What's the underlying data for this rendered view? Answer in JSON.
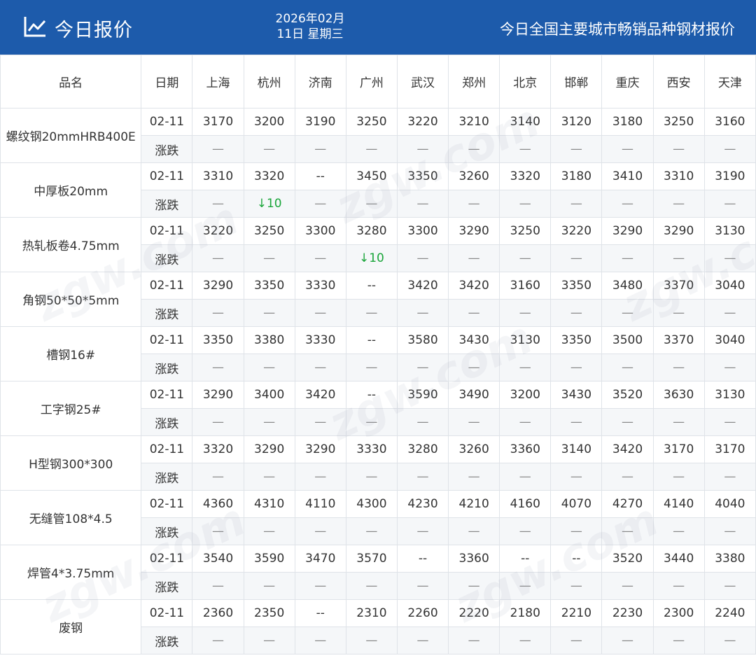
{
  "header": {
    "title": "今日报价",
    "date_line1": "2026年02月",
    "date_line2": "11日 星期三",
    "subtitle": "今日全国主要城市畅销品种钢材报价",
    "logo_icon": "line-chart-icon"
  },
  "colors": {
    "header_bg": "#1d5bab",
    "down": "#1aa53a"
  },
  "watermark": "zgw.com",
  "table": {
    "col_name": "品名",
    "col_date": "日期",
    "cities": [
      "上海",
      "杭州",
      "济南",
      "广州",
      "武汉",
      "郑州",
      "北京",
      "邯郸",
      "重庆",
      "西安",
      "天津"
    ],
    "rows": [
      {
        "name": "螺纹钢20mmHRB400E",
        "date": "02-11",
        "change_label": "涨跌",
        "prices": [
          "3170",
          "3200",
          "3190",
          "3250",
          "3220",
          "3210",
          "3140",
          "3120",
          "3180",
          "3250",
          "3160"
        ],
        "changes": [
          "—",
          "—",
          "—",
          "—",
          "—",
          "—",
          "—",
          "—",
          "—",
          "—",
          "—"
        ]
      },
      {
        "name": "中厚板20mm",
        "date": "02-11",
        "change_label": "涨跌",
        "prices": [
          "3310",
          "3320",
          "--",
          "3450",
          "3350",
          "3260",
          "3320",
          "3180",
          "3410",
          "3310",
          "3190"
        ],
        "changes": [
          "—",
          "↓10",
          "—",
          "—",
          "—",
          "—",
          "—",
          "—",
          "—",
          "—",
          "—"
        ]
      },
      {
        "name": "热轧板卷4.75mm",
        "date": "02-11",
        "change_label": "涨跌",
        "prices": [
          "3220",
          "3250",
          "3300",
          "3280",
          "3300",
          "3290",
          "3250",
          "3220",
          "3290",
          "3290",
          "3130"
        ],
        "changes": [
          "—",
          "—",
          "—",
          "↓10",
          "—",
          "—",
          "—",
          "—",
          "—",
          "—",
          "—"
        ]
      },
      {
        "name": "角钢50*50*5mm",
        "date": "02-11",
        "change_label": "涨跌",
        "prices": [
          "3290",
          "3350",
          "3330",
          "--",
          "3420",
          "3420",
          "3160",
          "3350",
          "3480",
          "3370",
          "3040"
        ],
        "changes": [
          "—",
          "—",
          "—",
          "—",
          "—",
          "—",
          "—",
          "—",
          "—",
          "—",
          "—"
        ]
      },
      {
        "name": "槽钢16#",
        "date": "02-11",
        "change_label": "涨跌",
        "prices": [
          "3350",
          "3380",
          "3330",
          "--",
          "3580",
          "3430",
          "3130",
          "3350",
          "3500",
          "3370",
          "3040"
        ],
        "changes": [
          "—",
          "—",
          "—",
          "—",
          "—",
          "—",
          "—",
          "—",
          "—",
          "—",
          "—"
        ]
      },
      {
        "name": "工字钢25#",
        "date": "02-11",
        "change_label": "涨跌",
        "prices": [
          "3290",
          "3400",
          "3420",
          "--",
          "3590",
          "3490",
          "3200",
          "3430",
          "3520",
          "3630",
          "3130"
        ],
        "changes": [
          "—",
          "—",
          "—",
          "—",
          "—",
          "—",
          "—",
          "—",
          "—",
          "—",
          "—"
        ]
      },
      {
        "name": "H型钢300*300",
        "date": "02-11",
        "change_label": "涨跌",
        "prices": [
          "3320",
          "3290",
          "3290",
          "3330",
          "3280",
          "3260",
          "3360",
          "3140",
          "3420",
          "3170",
          "3170"
        ],
        "changes": [
          "—",
          "—",
          "—",
          "—",
          "—",
          "—",
          "—",
          "—",
          "—",
          "—",
          "—"
        ]
      },
      {
        "name": "无缝管108*4.5",
        "date": "02-11",
        "change_label": "涨跌",
        "prices": [
          "4360",
          "4310",
          "4110",
          "4300",
          "4230",
          "4210",
          "4160",
          "4070",
          "4270",
          "4140",
          "4040"
        ],
        "changes": [
          "—",
          "—",
          "—",
          "—",
          "—",
          "—",
          "—",
          "—",
          "—",
          "—",
          "—"
        ]
      },
      {
        "name": "焊管4*3.75mm",
        "date": "02-11",
        "change_label": "涨跌",
        "prices": [
          "3540",
          "3590",
          "3470",
          "3570",
          "--",
          "3360",
          "--",
          "--",
          "3520",
          "3440",
          "3380"
        ],
        "changes": [
          "—",
          "—",
          "—",
          "—",
          "—",
          "—",
          "—",
          "—",
          "—",
          "—",
          "—"
        ]
      },
      {
        "name": "废钢",
        "date": "02-11",
        "change_label": "涨跌",
        "prices": [
          "2360",
          "2350",
          "--",
          "2310",
          "2260",
          "2220",
          "2180",
          "2210",
          "2230",
          "2300",
          "2240"
        ],
        "changes": [
          "—",
          "—",
          "—",
          "—",
          "—",
          "—",
          "—",
          "—",
          "—",
          "—",
          "—"
        ]
      }
    ]
  }
}
